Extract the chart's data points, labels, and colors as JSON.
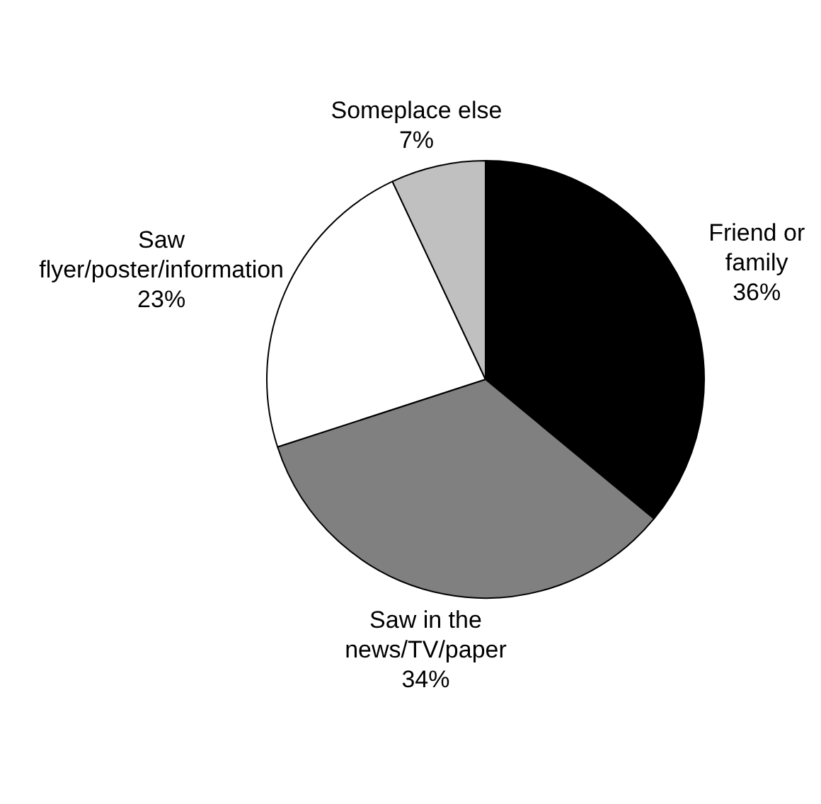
{
  "chart_data": {
    "type": "pie",
    "categories": [
      "Friend or family",
      "Saw in the news/TV/paper",
      "Saw flyer/poster/information",
      "Someplace else"
    ],
    "values": [
      36,
      34,
      23,
      7
    ],
    "value_labels": [
      "36%",
      "34%",
      "23%",
      "7%"
    ],
    "colors": [
      "#000000",
      "#808080",
      "#ffffff",
      "#c0c0c0"
    ]
  }
}
